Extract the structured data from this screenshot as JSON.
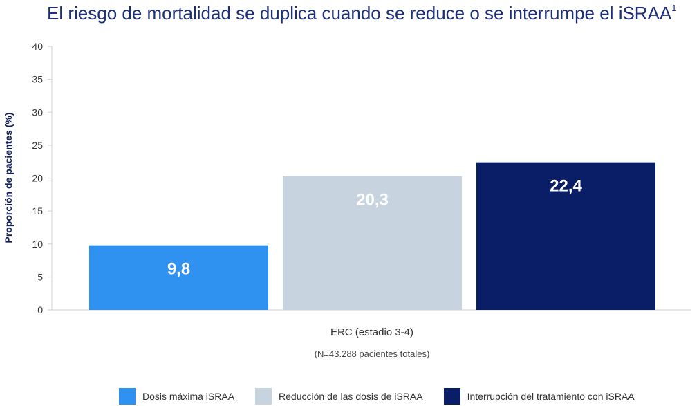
{
  "title": "El riesgo de mortalidad se duplica cuando se reduce o se interrumpe el iSRAA",
  "title_superscript": "1",
  "chart_data": {
    "type": "bar",
    "categories": [
      "ERC (estadio 3-4)"
    ],
    "subtitle": "(N=43.288 pacientes totales)",
    "ylabel": "Proporción de pacientes (%)",
    "ylim": [
      0,
      40
    ],
    "yticks": [
      0,
      5,
      10,
      15,
      20,
      25,
      30,
      35,
      40
    ],
    "grid": false,
    "legend_position": "bottom",
    "series": [
      {
        "name": "Dosis máxima iSRAA",
        "values": [
          9.8
        ],
        "label": "9,8",
        "color": "#3092f0"
      },
      {
        "name": "Reducción de las dosis de iSRAA",
        "values": [
          20.3
        ],
        "label": "20,3",
        "color": "#c7d4e0"
      },
      {
        "name": "Interrupción del tratamiento con iSRAA",
        "values": [
          22.4
        ],
        "label": "22,4",
        "color": "#0a1e68"
      }
    ]
  }
}
